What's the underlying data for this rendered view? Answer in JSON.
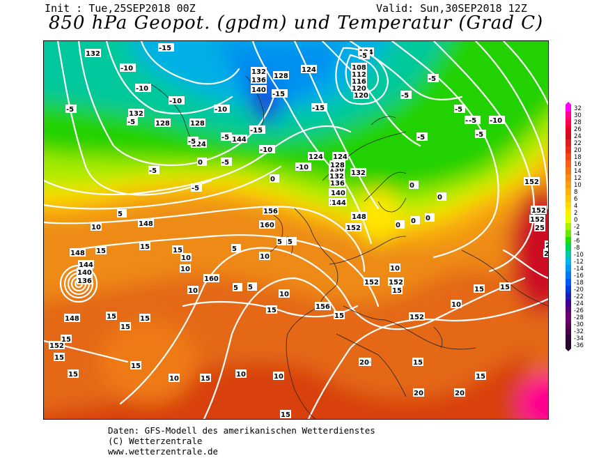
{
  "header": {
    "init": "Init : Tue,25SEP2018 00Z",
    "valid": "Valid: Sun,30SEP2018 12Z",
    "title": "850 hPa Geopot. (gpdm) und Temperatur (Grad C)"
  },
  "colorbar": {
    "ticks": [
      "32",
      "30",
      "28",
      "26",
      "24",
      "22",
      "20",
      "18",
      "16",
      "14",
      "12",
      "10",
      "8",
      "6",
      "4",
      "2",
      "0",
      "-2",
      "-4",
      "-6",
      "-8",
      "-10",
      "-12",
      "-14",
      "-16",
      "-18",
      "-20",
      "-22",
      "-24",
      "-26",
      "-28",
      "-30",
      "-32",
      "-34",
      "-36"
    ],
    "colors": [
      "#ff00ff",
      "#ff0090",
      "#ff0050",
      "#e6002a",
      "#cc0f1e",
      "#d81f1e",
      "#e52f1a",
      "#ee4718",
      "#f25f16",
      "#f47414",
      "#f68a12",
      "#f89e10",
      "#fab20e",
      "#fcc60c",
      "#ffdb00",
      "#fff000",
      "#e6ff00",
      "#a8f000",
      "#6ae600",
      "#28dc00",
      "#00d25a",
      "#00c8aa",
      "#00b4e6",
      "#0096f0",
      "#0078f0",
      "#005af0",
      "#003cdc",
      "#1e1eb4",
      "#3c0096",
      "#5a0078",
      "#6e006e",
      "#5a005a",
      "#46004a",
      "#32003a",
      "#28002e"
    ]
  },
  "map_labels": {
    "geopotential": [
      {
        "text": "124"
      },
      {
        "text": "132"
      },
      {
        "text": "108"
      },
      {
        "text": "112"
      },
      {
        "text": "116"
      },
      {
        "text": "120"
      },
      {
        "text": "124"
      },
      {
        "text": "132"
      },
      {
        "text": "136"
      },
      {
        "text": "128"
      },
      {
        "text": "140"
      },
      {
        "text": "144"
      },
      {
        "text": "124"
      },
      {
        "text": "128"
      },
      {
        "text": "132"
      },
      {
        "text": "128"
      },
      {
        "text": "124"
      },
      {
        "text": "132"
      },
      {
        "text": "136"
      },
      {
        "text": "140"
      },
      {
        "text": "144"
      },
      {
        "text": "148"
      },
      {
        "text": "156"
      },
      {
        "text": "160"
      },
      {
        "text": "160"
      },
      {
        "text": "156"
      },
      {
        "text": "152"
      },
      {
        "text": "152"
      },
      {
        "text": "148"
      },
      {
        "text": "152"
      },
      {
        "text": "144"
      },
      {
        "text": "140"
      },
      {
        "text": "136"
      },
      {
        "text": "148"
      },
      {
        "text": "152"
      },
      {
        "text": "124"
      },
      {
        "text": "128"
      },
      {
        "text": "132"
      },
      {
        "text": "136"
      },
      {
        "text": "140"
      },
      {
        "text": "144"
      },
      {
        "text": "148"
      },
      {
        "text": "152"
      },
      {
        "text": "152"
      },
      {
        "text": "152"
      },
      {
        "text": "152"
      },
      {
        "text": "120"
      }
    ],
    "temperature": [
      {
        "text": "-15"
      },
      {
        "text": "-10"
      },
      {
        "text": "-10"
      },
      {
        "text": "-10"
      },
      {
        "text": "-5"
      },
      {
        "text": "-10"
      },
      {
        "text": "-5"
      },
      {
        "text": "-5"
      },
      {
        "text": "-15"
      },
      {
        "text": "-10"
      },
      {
        "text": "-5"
      },
      {
        "text": "0"
      },
      {
        "text": "-5"
      },
      {
        "text": "-5"
      },
      {
        "text": "-5"
      },
      {
        "text": "-10"
      },
      {
        "text": "-15"
      },
      {
        "text": "-15"
      },
      {
        "text": "-5"
      },
      {
        "text": "-5"
      },
      {
        "text": "-5"
      },
      {
        "text": "-5"
      },
      {
        "text": "-10"
      },
      {
        "text": "0"
      },
      {
        "text": "5"
      },
      {
        "text": "5"
      },
      {
        "text": "10"
      },
      {
        "text": "15"
      },
      {
        "text": "15"
      },
      {
        "text": "15"
      },
      {
        "text": "10"
      },
      {
        "text": "10"
      },
      {
        "text": "10"
      },
      {
        "text": "5"
      },
      {
        "text": "10"
      },
      {
        "text": "5"
      },
      {
        "text": "15"
      },
      {
        "text": "15"
      },
      {
        "text": "15"
      },
      {
        "text": "15"
      },
      {
        "text": "10"
      },
      {
        "text": "15"
      },
      {
        "text": "20"
      },
      {
        "text": "15"
      },
      {
        "text": "20"
      },
      {
        "text": "20"
      },
      {
        "text": "15"
      },
      {
        "text": "10"
      },
      {
        "text": "15"
      },
      {
        "text": "10"
      },
      {
        "text": "5"
      },
      {
        "text": "0"
      },
      {
        "text": "0"
      },
      {
        "text": "10"
      },
      {
        "text": "15"
      },
      {
        "text": "20"
      },
      {
        "text": "25"
      },
      {
        "text": "20"
      },
      {
        "text": "15"
      },
      {
        "text": "10"
      },
      {
        "text": "15"
      },
      {
        "text": "0"
      },
      {
        "text": "0"
      },
      {
        "text": "0"
      },
      {
        "text": "-5"
      },
      {
        "text": "-5"
      },
      {
        "text": "15"
      },
      {
        "text": "10"
      },
      {
        "text": "15"
      },
      {
        "text": "15"
      },
      {
        "text": "15"
      },
      {
        "text": "20"
      },
      {
        "text": "15"
      },
      {
        "text": "25"
      },
      {
        "text": "-5"
      },
      {
        "text": "-10"
      },
      {
        "text": "5"
      }
    ]
  },
  "credits": {
    "line1": "Daten: GFS-Modell des amerikanischen Wetterdienstes",
    "line2": "(C) Wetterzentrale",
    "line3": "www.wetterzentrale.de"
  }
}
